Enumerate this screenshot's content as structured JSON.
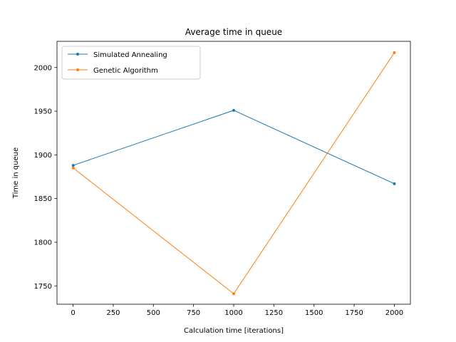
{
  "chart_data": {
    "type": "line",
    "title": "Average time in queue",
    "xlabel": "Calculation time [iterations]",
    "ylabel": "Time in queue",
    "xlim": [
      -100,
      2100
    ],
    "ylim": [
      1729,
      2030
    ],
    "xticks": [
      0,
      250,
      500,
      750,
      1000,
      1250,
      1500,
      1750,
      2000
    ],
    "yticks": [
      1750,
      1800,
      1850,
      1900,
      1950,
      2000
    ],
    "grid": false,
    "legend_position": "upper-left",
    "series": [
      {
        "name": "Simulated Annealing",
        "color": "#1f77b4",
        "x": [
          1,
          1000,
          2000
        ],
        "y": [
          1888,
          1951,
          1867
        ]
      },
      {
        "name": "Genetic Algorithm",
        "color": "#ff7f0e",
        "x": [
          1,
          1000,
          2000
        ],
        "y": [
          1885,
          1741,
          2017
        ]
      }
    ]
  }
}
